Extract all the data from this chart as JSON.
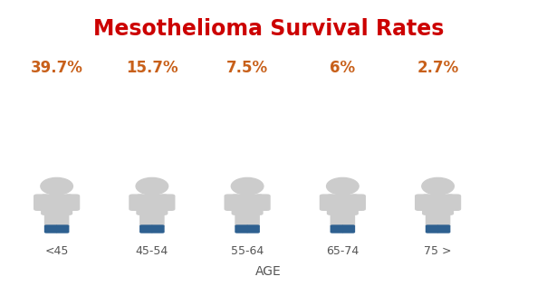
{
  "title": "Mesothelioma Survival Rates",
  "title_color": "#cc0000",
  "title_fontsize": 17,
  "categories": [
    "<45",
    "45-54",
    "55-64",
    "65-74",
    "75 >"
  ],
  "percentages": [
    "39.7%",
    "15.7%",
    "7.5%",
    "6%",
    "2.7%"
  ],
  "percentage_color": "#c8601a",
  "percentage_fontsize": 12,
  "xlabel": "AGE",
  "xlabel_fontsize": 10,
  "xlabel_color": "#555555",
  "category_fontsize": 9,
  "category_color": "#555555",
  "body_color": "#cccccc",
  "feet_color": "#2e6090",
  "background_color": "#ffffff",
  "figure_width": 5.93,
  "figure_height": 3.16,
  "positions": [
    0.1,
    0.28,
    0.46,
    0.64,
    0.82
  ]
}
